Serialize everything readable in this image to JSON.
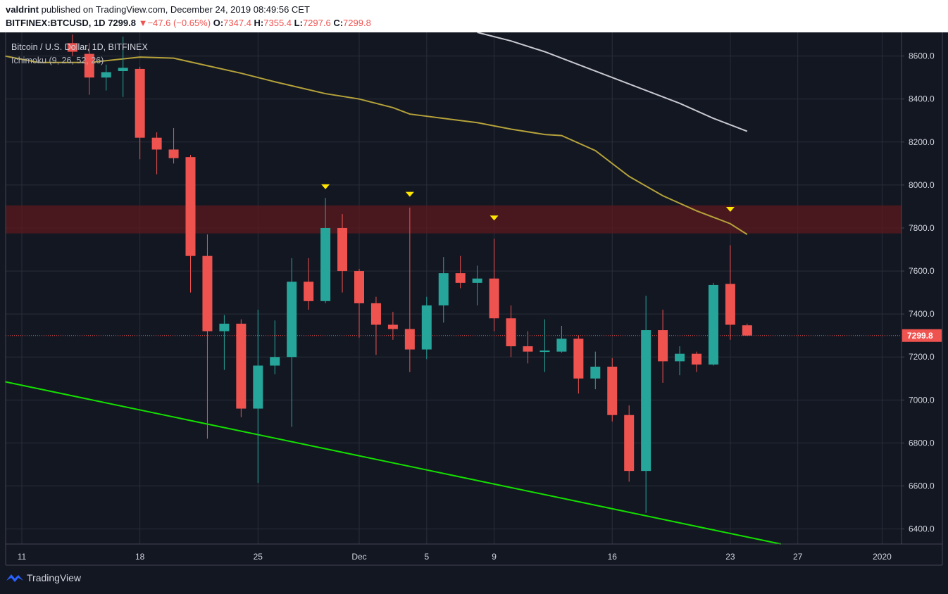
{
  "header": {
    "author": "valdrint",
    "published": "published on TradingView.com, December 24, 2019 08:49:56 CET",
    "symbol": "BITFINEX:BTCUSD, 1D",
    "last": "7299.8",
    "change": "−47.6 (−0.65%)",
    "o_label": "O:",
    "o_value": "7347.4",
    "h_label": "H:",
    "h_value": "7355.4",
    "l_label": "L:",
    "l_value": "7297.6",
    "c_label": "C:",
    "c_value": "7299.8"
  },
  "legend": {
    "title": "Bitcoin / U.S. Dollar, 1D, BITFINEX",
    "indicator": "Ichimoku (9, 26, 52, 26)"
  },
  "footer": {
    "brand": "TradingView"
  },
  "colors": {
    "up": "#26a69a",
    "down": "#ef5350",
    "grid": "#2a2e39",
    "ichimoku_yellow": "#b5a23a",
    "ichimoku_grey": "#c8c8d0",
    "trendline": "#14e000",
    "zone": "#5c1a1f",
    "marker": "#ffe600"
  },
  "chart_data": {
    "type": "candlestick",
    "title": "Bitcoin / U.S. Dollar, 1D, BITFINEX",
    "y_axis": {
      "position": "right",
      "ylim": [
        6330,
        8710
      ],
      "ticks": [
        "6400.0",
        "6600.0",
        "6800.0",
        "7000.0",
        "7200.0",
        "7400.0",
        "7600.0",
        "7800.0",
        "8000.0",
        "8200.0",
        "8400.0",
        "8600.0"
      ]
    },
    "x_axis": {
      "ticks": [
        {
          "label": "11",
          "date": "2019-11-11"
        },
        {
          "label": "18",
          "date": "2019-11-18"
        },
        {
          "label": "25",
          "date": "2019-11-25"
        },
        {
          "label": "Dec",
          "date": "2019-12-01"
        },
        {
          "label": "5",
          "date": "2019-12-05"
        },
        {
          "label": "9",
          "date": "2019-12-09"
        },
        {
          "label": "16",
          "date": "2019-12-16"
        },
        {
          "label": "23",
          "date": "2019-12-23"
        },
        {
          "label": "27",
          "date": "2019-12-27"
        },
        {
          "label": "2020",
          "date": "2020-01-01"
        }
      ]
    },
    "candles": [
      {
        "date": "2019-11-14",
        "o": 8660,
        "h": 8700,
        "l": 8600,
        "c": 8620
      },
      {
        "date": "2019-11-15",
        "o": 8610,
        "h": 8660,
        "l": 8420,
        "c": 8500
      },
      {
        "date": "2019-11-16",
        "o": 8500,
        "h": 8560,
        "l": 8440,
        "c": 8525
      },
      {
        "date": "2019-11-17",
        "o": 8530,
        "h": 8690,
        "l": 8410,
        "c": 8545
      },
      {
        "date": "2019-11-18",
        "o": 8540,
        "h": 8550,
        "l": 8120,
        "c": 8220
      },
      {
        "date": "2019-11-19",
        "o": 8220,
        "h": 8245,
        "l": 8050,
        "c": 8165
      },
      {
        "date": "2019-11-20",
        "o": 8165,
        "h": 8265,
        "l": 8100,
        "c": 8125
      },
      {
        "date": "2019-11-21",
        "o": 8130,
        "h": 8140,
        "l": 7500,
        "c": 7670
      },
      {
        "date": "2019-11-22",
        "o": 7670,
        "h": 7770,
        "l": 6820,
        "c": 7320
      },
      {
        "date": "2019-11-23",
        "o": 7320,
        "h": 7395,
        "l": 7140,
        "c": 7355
      },
      {
        "date": "2019-11-24",
        "o": 7355,
        "h": 7375,
        "l": 6920,
        "c": 6960
      },
      {
        "date": "2019-11-25",
        "o": 6960,
        "h": 7420,
        "l": 6615,
        "c": 7160
      },
      {
        "date": "2019-11-26",
        "o": 7160,
        "h": 7370,
        "l": 7120,
        "c": 7200
      },
      {
        "date": "2019-11-27",
        "o": 7200,
        "h": 7660,
        "l": 6875,
        "c": 7550
      },
      {
        "date": "2019-11-28",
        "o": 7550,
        "h": 7660,
        "l": 7420,
        "c": 7460
      },
      {
        "date": "2019-11-29",
        "o": 7460,
        "h": 7940,
        "l": 7450,
        "c": 7800
      },
      {
        "date": "2019-11-30",
        "o": 7800,
        "h": 7865,
        "l": 7500,
        "c": 7600
      },
      {
        "date": "2019-12-01",
        "o": 7600,
        "h": 7610,
        "l": 7290,
        "c": 7450
      },
      {
        "date": "2019-12-02",
        "o": 7450,
        "h": 7480,
        "l": 7210,
        "c": 7350
      },
      {
        "date": "2019-12-03",
        "o": 7350,
        "h": 7410,
        "l": 7280,
        "c": 7330
      },
      {
        "date": "2019-12-04",
        "o": 7330,
        "h": 7895,
        "l": 7130,
        "c": 7235
      },
      {
        "date": "2019-12-05",
        "o": 7235,
        "h": 7480,
        "l": 7190,
        "c": 7440
      },
      {
        "date": "2019-12-06",
        "o": 7440,
        "h": 7665,
        "l": 7360,
        "c": 7590
      },
      {
        "date": "2019-12-07",
        "o": 7590,
        "h": 7670,
        "l": 7520,
        "c": 7545
      },
      {
        "date": "2019-12-08",
        "o": 7545,
        "h": 7625,
        "l": 7440,
        "c": 7565
      },
      {
        "date": "2019-12-09",
        "o": 7565,
        "h": 7750,
        "l": 7320,
        "c": 7380
      },
      {
        "date": "2019-12-10",
        "o": 7380,
        "h": 7440,
        "l": 7200,
        "c": 7250
      },
      {
        "date": "2019-12-11",
        "o": 7250,
        "h": 7320,
        "l": 7170,
        "c": 7225
      },
      {
        "date": "2019-12-12",
        "o": 7225,
        "h": 7375,
        "l": 7130,
        "c": 7230
      },
      {
        "date": "2019-12-13",
        "o": 7225,
        "h": 7345,
        "l": 7220,
        "c": 7285
      },
      {
        "date": "2019-12-14",
        "o": 7285,
        "h": 7300,
        "l": 7030,
        "c": 7100
      },
      {
        "date": "2019-12-15",
        "o": 7100,
        "h": 7225,
        "l": 7050,
        "c": 7155
      },
      {
        "date": "2019-12-16",
        "o": 7155,
        "h": 7195,
        "l": 6900,
        "c": 6930
      },
      {
        "date": "2019-12-17",
        "o": 6930,
        "h": 6975,
        "l": 6620,
        "c": 6670
      },
      {
        "date": "2019-12-18",
        "o": 6670,
        "h": 7485,
        "l": 6475,
        "c": 7325
      },
      {
        "date": "2019-12-19",
        "o": 7325,
        "h": 7420,
        "l": 7080,
        "c": 7180
      },
      {
        "date": "2019-12-20",
        "o": 7180,
        "h": 7250,
        "l": 7115,
        "c": 7215
      },
      {
        "date": "2019-12-21",
        "o": 7215,
        "h": 7225,
        "l": 7130,
        "c": 7165
      },
      {
        "date": "2019-12-22",
        "o": 7165,
        "h": 7545,
        "l": 7160,
        "c": 7535
      },
      {
        "date": "2019-12-23",
        "o": 7540,
        "h": 7720,
        "l": 7280,
        "c": 7350
      },
      {
        "date": "2019-12-24",
        "o": 7347.4,
        "h": 7355.4,
        "l": 7297.6,
        "c": 7299.8
      }
    ],
    "ichimoku_yellow_line": [
      [
        "2019-11-10",
        8600
      ],
      [
        "2019-11-12",
        8570
      ],
      [
        "2019-11-15",
        8570
      ],
      [
        "2019-11-18",
        8595
      ],
      [
        "2019-11-20",
        8590
      ],
      [
        "2019-11-22",
        8555
      ],
      [
        "2019-11-24",
        8520
      ],
      [
        "2019-11-26",
        8480
      ],
      [
        "2019-11-29",
        8425
      ],
      [
        "2019-12-01",
        8400
      ],
      [
        "2019-12-03",
        8360
      ],
      [
        "2019-12-04",
        8330
      ],
      [
        "2019-12-07",
        8300
      ],
      [
        "2019-12-08",
        8290
      ],
      [
        "2019-12-10",
        8260
      ],
      [
        "2019-12-12",
        8235
      ],
      [
        "2019-12-13",
        8230
      ],
      [
        "2019-12-15",
        8160
      ],
      [
        "2019-12-17",
        8040
      ],
      [
        "2019-12-19",
        7950
      ],
      [
        "2019-12-21",
        7880
      ],
      [
        "2019-12-23",
        7820
      ],
      [
        "2019-12-24",
        7770
      ]
    ],
    "ichimoku_grey_line": [
      [
        "2019-12-08",
        8710
      ],
      [
        "2019-12-10",
        8670
      ],
      [
        "2019-12-12",
        8620
      ],
      [
        "2019-12-14",
        8560
      ],
      [
        "2019-12-17",
        8470
      ],
      [
        "2019-12-20",
        8380
      ],
      [
        "2019-12-22",
        8310
      ],
      [
        "2019-12-24",
        8250
      ]
    ],
    "resistance_zone": {
      "y_low": 7775,
      "y_high": 7905
    },
    "trendline": {
      "from": [
        "2019-11-10",
        7085
      ],
      "to": [
        "2019-12-26",
        6330
      ]
    },
    "markers": [
      {
        "date": "2019-11-29",
        "price": 7990
      },
      {
        "date": "2019-12-04",
        "price": 7955
      },
      {
        "date": "2019-12-09",
        "price": 7845
      },
      {
        "date": "2019-12-23",
        "price": 7885
      }
    ],
    "last_price_label": "7299.8",
    "last_price": 7299.8
  }
}
